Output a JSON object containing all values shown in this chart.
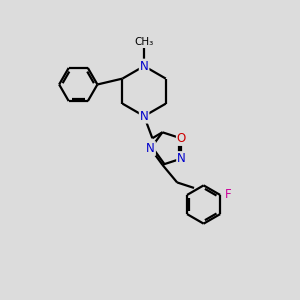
{
  "bg_color": "#dcdcdc",
  "bond_color": "#000000",
  "N_color": "#0000cc",
  "O_color": "#cc0000",
  "F_color": "#cc0099",
  "line_width": 1.6,
  "font_size": 8.5,
  "xlim": [
    0,
    10
  ],
  "ylim": [
    0,
    10
  ]
}
